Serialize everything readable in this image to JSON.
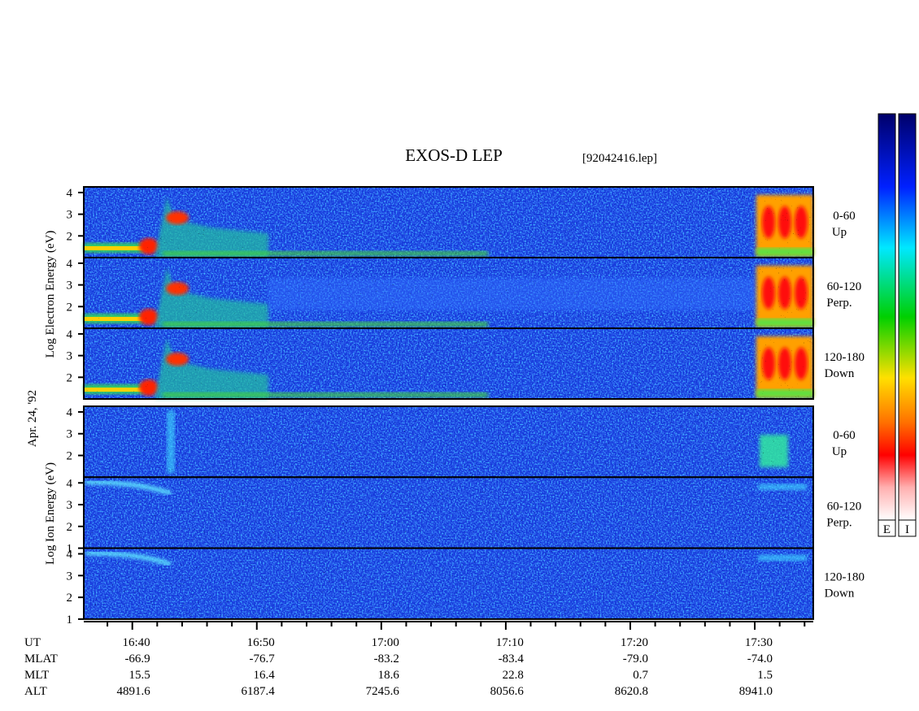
{
  "title": "EXOS-D LEP",
  "file": "[92042416.lep]",
  "date": "Apr. 24, '92",
  "electron": {
    "label": "Log Electron Energy (eV)",
    "panels": [
      {
        "type": "spectrogram",
        "channel": [
          "0-60",
          "Up"
        ],
        "ylim": [
          1,
          4.26
        ],
        "yticks": [
          2,
          3,
          4
        ]
      },
      {
        "type": "spectrogram",
        "channel": [
          "60-120",
          "Perp."
        ],
        "ylim": [
          1,
          4.26
        ],
        "yticks": [
          2,
          3,
          4
        ]
      },
      {
        "type": "spectrogram",
        "channel": [
          "120-180",
          "Down"
        ],
        "ylim": [
          1,
          4.26
        ],
        "yticks": [
          2,
          3,
          4
        ]
      }
    ]
  },
  "ion": {
    "label": "Log Ion Energy (eV)",
    "panels": [
      {
        "type": "spectrogram",
        "channel": [
          "0-60",
          "Up"
        ],
        "ylim": [
          1,
          4.26
        ],
        "yticks": [
          2,
          3,
          4
        ]
      },
      {
        "type": "spectrogram",
        "channel": [
          "60-120",
          "Perp."
        ],
        "ylim": [
          1,
          4.26
        ],
        "yticks": [
          1,
          2,
          3,
          4
        ]
      },
      {
        "type": "spectrogram",
        "channel": [
          "120-180",
          "Down"
        ],
        "ylim": [
          1,
          4.26
        ],
        "yticks": [
          1,
          2,
          3,
          4
        ]
      }
    ]
  },
  "time_axis": {
    "label": "UT",
    "xlim": [
      996.1,
      1054.7
    ],
    "xticks": [
      {
        "value": 1000,
        "label": "16:40"
      },
      {
        "value": 1010,
        "label": "16:50"
      },
      {
        "value": 1020,
        "label": "17:00"
      },
      {
        "value": 1030,
        "label": "17:10"
      },
      {
        "value": 1040,
        "label": "17:20"
      },
      {
        "value": 1050,
        "label": "17:30"
      }
    ],
    "xminorticks": [
      998,
      1002,
      1004,
      1006,
      1008,
      1012,
      1014,
      1016,
      1018,
      1022,
      1024,
      1026,
      1028,
      1032,
      1034,
      1036,
      1038,
      1042,
      1044,
      1046,
      1048,
      1052,
      1054
    ]
  },
  "orbit": [
    {
      "label": "MLAT",
      "values": [
        "-66.9",
        "-76.7",
        "-83.2",
        "-83.4",
        "-79.0",
        "-74.0"
      ]
    },
    {
      "label": "MLT",
      "values": [
        "15.5",
        "16.4",
        "18.6",
        "22.8",
        "0.7",
        "1.5"
      ]
    },
    {
      "label": "ALT",
      "values": [
        "4891.6",
        "6187.4",
        "7245.6",
        "8056.6",
        "8620.8",
        "8941.0"
      ]
    }
  ],
  "colorbars": [
    "E",
    "I"
  ]
}
